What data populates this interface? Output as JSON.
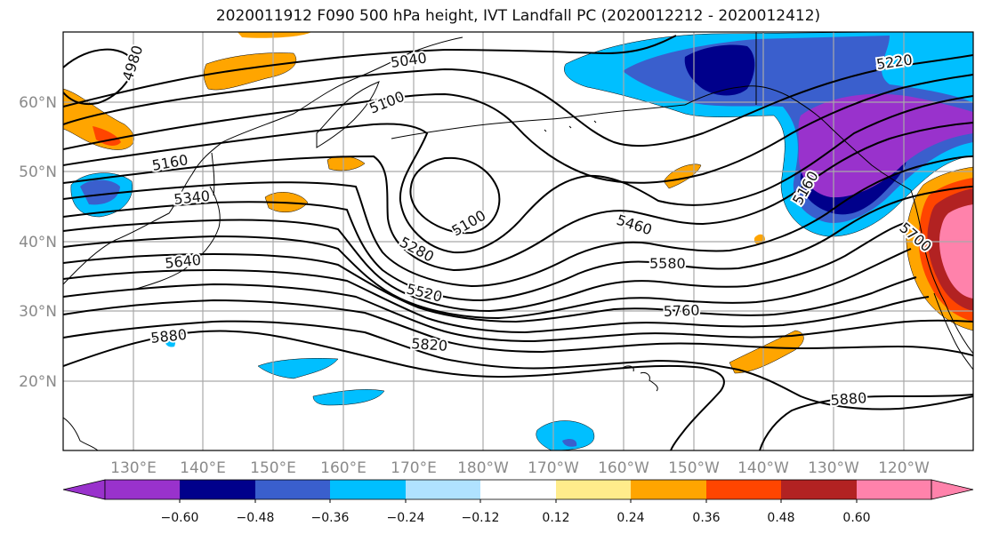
{
  "title": "2020011912 F090 500 hPa height, IVT Landfall PC (2020012212 - 2020012412)",
  "lat_labels": [
    "60°N",
    "50°N",
    "40°N",
    "30°N",
    "20°N"
  ],
  "lon_labels": [
    "130°E",
    "140°E",
    "150°E",
    "160°E",
    "170°E",
    "180°W",
    "170°W",
    "160°W",
    "150°W",
    "140°W",
    "130°W",
    "120°W"
  ],
  "contour_labels": [
    "4980",
    "5040",
    "5100",
    "5160",
    "5220",
    "5340",
    "5100",
    "5280",
    "5460",
    "5580",
    "5640",
    "5520",
    "5760",
    "5880",
    "5820",
    "5880",
    "5160",
    "5700"
  ],
  "colorbar": {
    "colors": [
      "#9932cc",
      "#00008b",
      "#3a5fcd",
      "#00bfff",
      "#b0e2ff",
      "#ffffff",
      "#ffec8b",
      "#ffa500",
      "#ff4500",
      "#b22222",
      "#ff82ab"
    ],
    "ticks": [
      "−0.60",
      "−0.48",
      "−0.36",
      "−0.24",
      "−0.12",
      "0.12",
      "0.24",
      "0.36",
      "0.48",
      "0.60"
    ]
  },
  "colors": {
    "contour": "#000000",
    "grid": "#a9a9a9",
    "coast": "#000000"
  }
}
